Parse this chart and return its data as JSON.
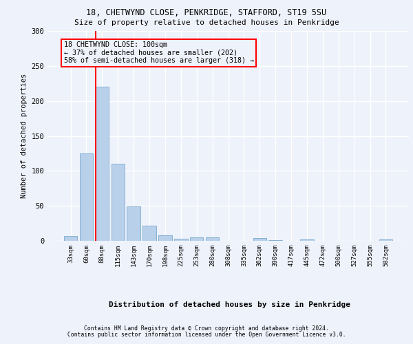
{
  "title_line1": "18, CHETWYND CLOSE, PENKRIDGE, STAFFORD, ST19 5SU",
  "title_line2": "Size of property relative to detached houses in Penkridge",
  "xlabel": "Distribution of detached houses by size in Penkridge",
  "ylabel": "Number of detached properties",
  "annotation_line1": "18 CHETWYND CLOSE: 100sqm",
  "annotation_line2": "← 37% of detached houses are smaller (202)",
  "annotation_line3": "58% of semi-detached houses are larger (318) →",
  "bar_color": "#b8d0ea",
  "bar_edge_color": "#7aaad0",
  "reference_line_color": "red",
  "annotation_box_color": "red",
  "background_color": "#eef2fa",
  "grid_color": "#ffffff",
  "categories": [
    "33sqm",
    "60sqm",
    "88sqm",
    "115sqm",
    "143sqm",
    "170sqm",
    "198sqm",
    "225sqm",
    "253sqm",
    "280sqm",
    "308sqm",
    "335sqm",
    "362sqm",
    "390sqm",
    "417sqm",
    "445sqm",
    "472sqm",
    "500sqm",
    "527sqm",
    "555sqm",
    "582sqm"
  ],
  "values": [
    7,
    125,
    220,
    110,
    49,
    22,
    8,
    3,
    5,
    5,
    0,
    0,
    4,
    1,
    0,
    2,
    0,
    0,
    0,
    0,
    2
  ],
  "reference_bar_index": 2,
  "ylim": [
    0,
    300
  ],
  "yticks": [
    0,
    50,
    100,
    150,
    200,
    250,
    300
  ],
  "footnote1": "Contains HM Land Registry data © Crown copyright and database right 2024.",
  "footnote2": "Contains public sector information licensed under the Open Government Licence v3.0."
}
